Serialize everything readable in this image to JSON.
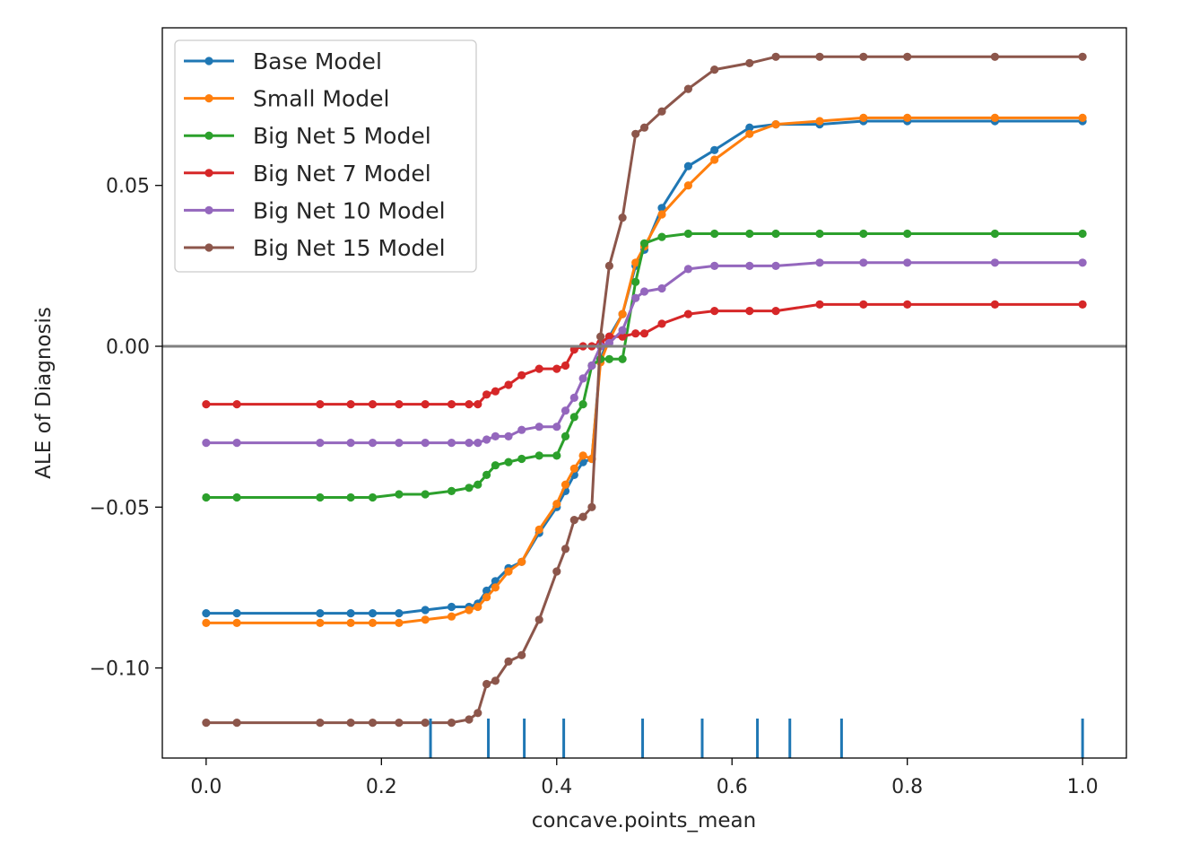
{
  "chart_data": {
    "type": "line",
    "title": "",
    "xlabel": "concave.points_mean",
    "ylabel": "ALE of Diagnosis",
    "xlim": [
      -0.05,
      1.05
    ],
    "ylim": [
      -0.128,
      0.099
    ],
    "xticks": [
      0.0,
      0.2,
      0.4,
      0.6,
      0.8,
      1.0
    ],
    "xtick_labels": [
      "0.0",
      "0.2",
      "0.4",
      "0.6",
      "0.8",
      "1.0"
    ],
    "yticks": [
      0.05,
      0.0,
      -0.05,
      -0.1
    ],
    "ytick_labels": [
      "0.05",
      "0.00",
      "−0.05",
      "−0.10"
    ],
    "grid": false,
    "legend_position": "top-left",
    "zero_line": 0.0,
    "rug": [
      0.256,
      0.322,
      0.363,
      0.408,
      0.498,
      0.566,
      0.629,
      0.666,
      0.725,
      1.0
    ],
    "x": [
      0.0,
      0.035,
      0.13,
      0.165,
      0.19,
      0.22,
      0.25,
      0.28,
      0.3,
      0.31,
      0.32,
      0.33,
      0.345,
      0.36,
      0.38,
      0.4,
      0.41,
      0.42,
      0.43,
      0.44,
      0.45,
      0.46,
      0.475,
      0.49,
      0.5,
      0.52,
      0.55,
      0.58,
      0.62,
      0.65,
      0.7,
      0.75,
      0.8,
      0.9,
      1.0
    ],
    "series": [
      {
        "name": "Base Model",
        "color": "#1f77b4",
        "values": [
          -0.083,
          -0.083,
          -0.083,
          -0.083,
          -0.083,
          -0.083,
          -0.082,
          -0.081,
          -0.081,
          -0.08,
          -0.076,
          -0.073,
          -0.069,
          -0.067,
          -0.058,
          -0.05,
          -0.045,
          -0.04,
          -0.036,
          -0.035,
          -0.004,
          0.003,
          0.01,
          0.025,
          0.03,
          0.043,
          0.056,
          0.061,
          0.068,
          0.069,
          0.069,
          0.07,
          0.07,
          0.07,
          0.07
        ]
      },
      {
        "name": "Small Model",
        "color": "#ff7f0e",
        "values": [
          -0.086,
          -0.086,
          -0.086,
          -0.086,
          -0.086,
          -0.086,
          -0.085,
          -0.084,
          -0.082,
          -0.081,
          -0.078,
          -0.075,
          -0.07,
          -0.067,
          -0.057,
          -0.049,
          -0.043,
          -0.038,
          -0.034,
          -0.035,
          -0.005,
          0.002,
          0.01,
          0.026,
          0.031,
          0.041,
          0.05,
          0.058,
          0.066,
          0.069,
          0.07,
          0.071,
          0.071,
          0.071,
          0.071
        ]
      },
      {
        "name": "Big Net 5 Model",
        "color": "#2ca02c",
        "values": [
          -0.047,
          -0.047,
          -0.047,
          -0.047,
          -0.047,
          -0.046,
          -0.046,
          -0.045,
          -0.044,
          -0.043,
          -0.04,
          -0.037,
          -0.036,
          -0.035,
          -0.034,
          -0.034,
          -0.028,
          -0.022,
          -0.018,
          -0.006,
          -0.004,
          -0.004,
          -0.004,
          0.02,
          0.032,
          0.034,
          0.035,
          0.035,
          0.035,
          0.035,
          0.035,
          0.035,
          0.035,
          0.035,
          0.035
        ]
      },
      {
        "name": "Big Net 7 Model",
        "color": "#d62728",
        "values": [
          -0.018,
          -0.018,
          -0.018,
          -0.018,
          -0.018,
          -0.018,
          -0.018,
          -0.018,
          -0.018,
          -0.018,
          -0.015,
          -0.014,
          -0.012,
          -0.009,
          -0.007,
          -0.007,
          -0.006,
          -0.001,
          0.0,
          0.0,
          0.001,
          0.003,
          0.003,
          0.004,
          0.004,
          0.007,
          0.01,
          0.011,
          0.011,
          0.011,
          0.013,
          0.013,
          0.013,
          0.013,
          0.013
        ]
      },
      {
        "name": "Big Net 10 Model",
        "color": "#9467bd",
        "values": [
          -0.03,
          -0.03,
          -0.03,
          -0.03,
          -0.03,
          -0.03,
          -0.03,
          -0.03,
          -0.03,
          -0.03,
          -0.029,
          -0.028,
          -0.028,
          -0.026,
          -0.025,
          -0.025,
          -0.02,
          -0.016,
          -0.01,
          -0.006,
          0.0,
          0.001,
          0.005,
          0.015,
          0.017,
          0.018,
          0.024,
          0.025,
          0.025,
          0.025,
          0.026,
          0.026,
          0.026,
          0.026,
          0.026
        ]
      },
      {
        "name": "Big Net 15 Model",
        "color": "#8c564b",
        "values": [
          -0.117,
          -0.117,
          -0.117,
          -0.117,
          -0.117,
          -0.117,
          -0.117,
          -0.117,
          -0.116,
          -0.114,
          -0.105,
          -0.104,
          -0.098,
          -0.096,
          -0.085,
          -0.07,
          -0.063,
          -0.054,
          -0.053,
          -0.05,
          0.003,
          0.025,
          0.04,
          0.066,
          0.068,
          0.073,
          0.08,
          0.086,
          0.088,
          0.09,
          0.09,
          0.09,
          0.09,
          0.09,
          0.09
        ]
      }
    ]
  }
}
